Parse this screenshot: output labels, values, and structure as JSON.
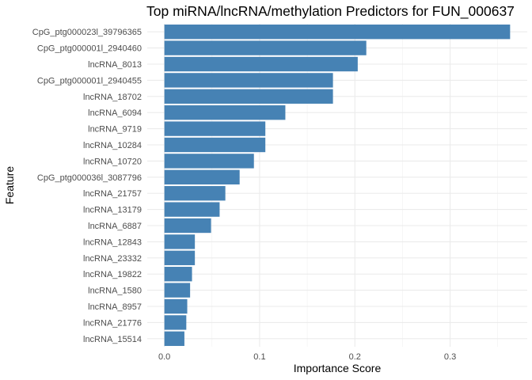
{
  "chart_data": {
    "type": "bar",
    "orientation": "horizontal",
    "title": "Top miRNA/lncRNA/methylation Predictors for FUN_000637",
    "xlabel": "Importance Score",
    "ylabel": "Feature",
    "xlim": [
      -0.018,
      0.381
    ],
    "xticks": [
      0.0,
      0.1,
      0.2,
      0.3
    ],
    "xtick_labels": [
      "0.0",
      "0.1",
      "0.2",
      "0.3"
    ],
    "grid": true,
    "bar_color": "#4682B4",
    "categories": [
      "CpG_ptg000023l_39796365",
      "CpG_ptg000001l_2940460",
      "lncRNA_8013",
      "CpG_ptg000001l_2940455",
      "lncRNA_18702",
      "lncRNA_6094",
      "lncRNA_9719",
      "lncRNA_10284",
      "lncRNA_10720",
      "CpG_ptg000036l_3087796",
      "lncRNA_21757",
      "lncRNA_13179",
      "lncRNA_6887",
      "lncRNA_12843",
      "lncRNA_23332",
      "lncRNA_19822",
      "lncRNA_1580",
      "lncRNA_8957",
      "lncRNA_21776",
      "lncRNA_15514"
    ],
    "values": [
      0.363,
      0.212,
      0.203,
      0.177,
      0.177,
      0.127,
      0.106,
      0.106,
      0.094,
      0.079,
      0.064,
      0.058,
      0.049,
      0.032,
      0.032,
      0.029,
      0.027,
      0.024,
      0.023,
      0.021
    ]
  }
}
